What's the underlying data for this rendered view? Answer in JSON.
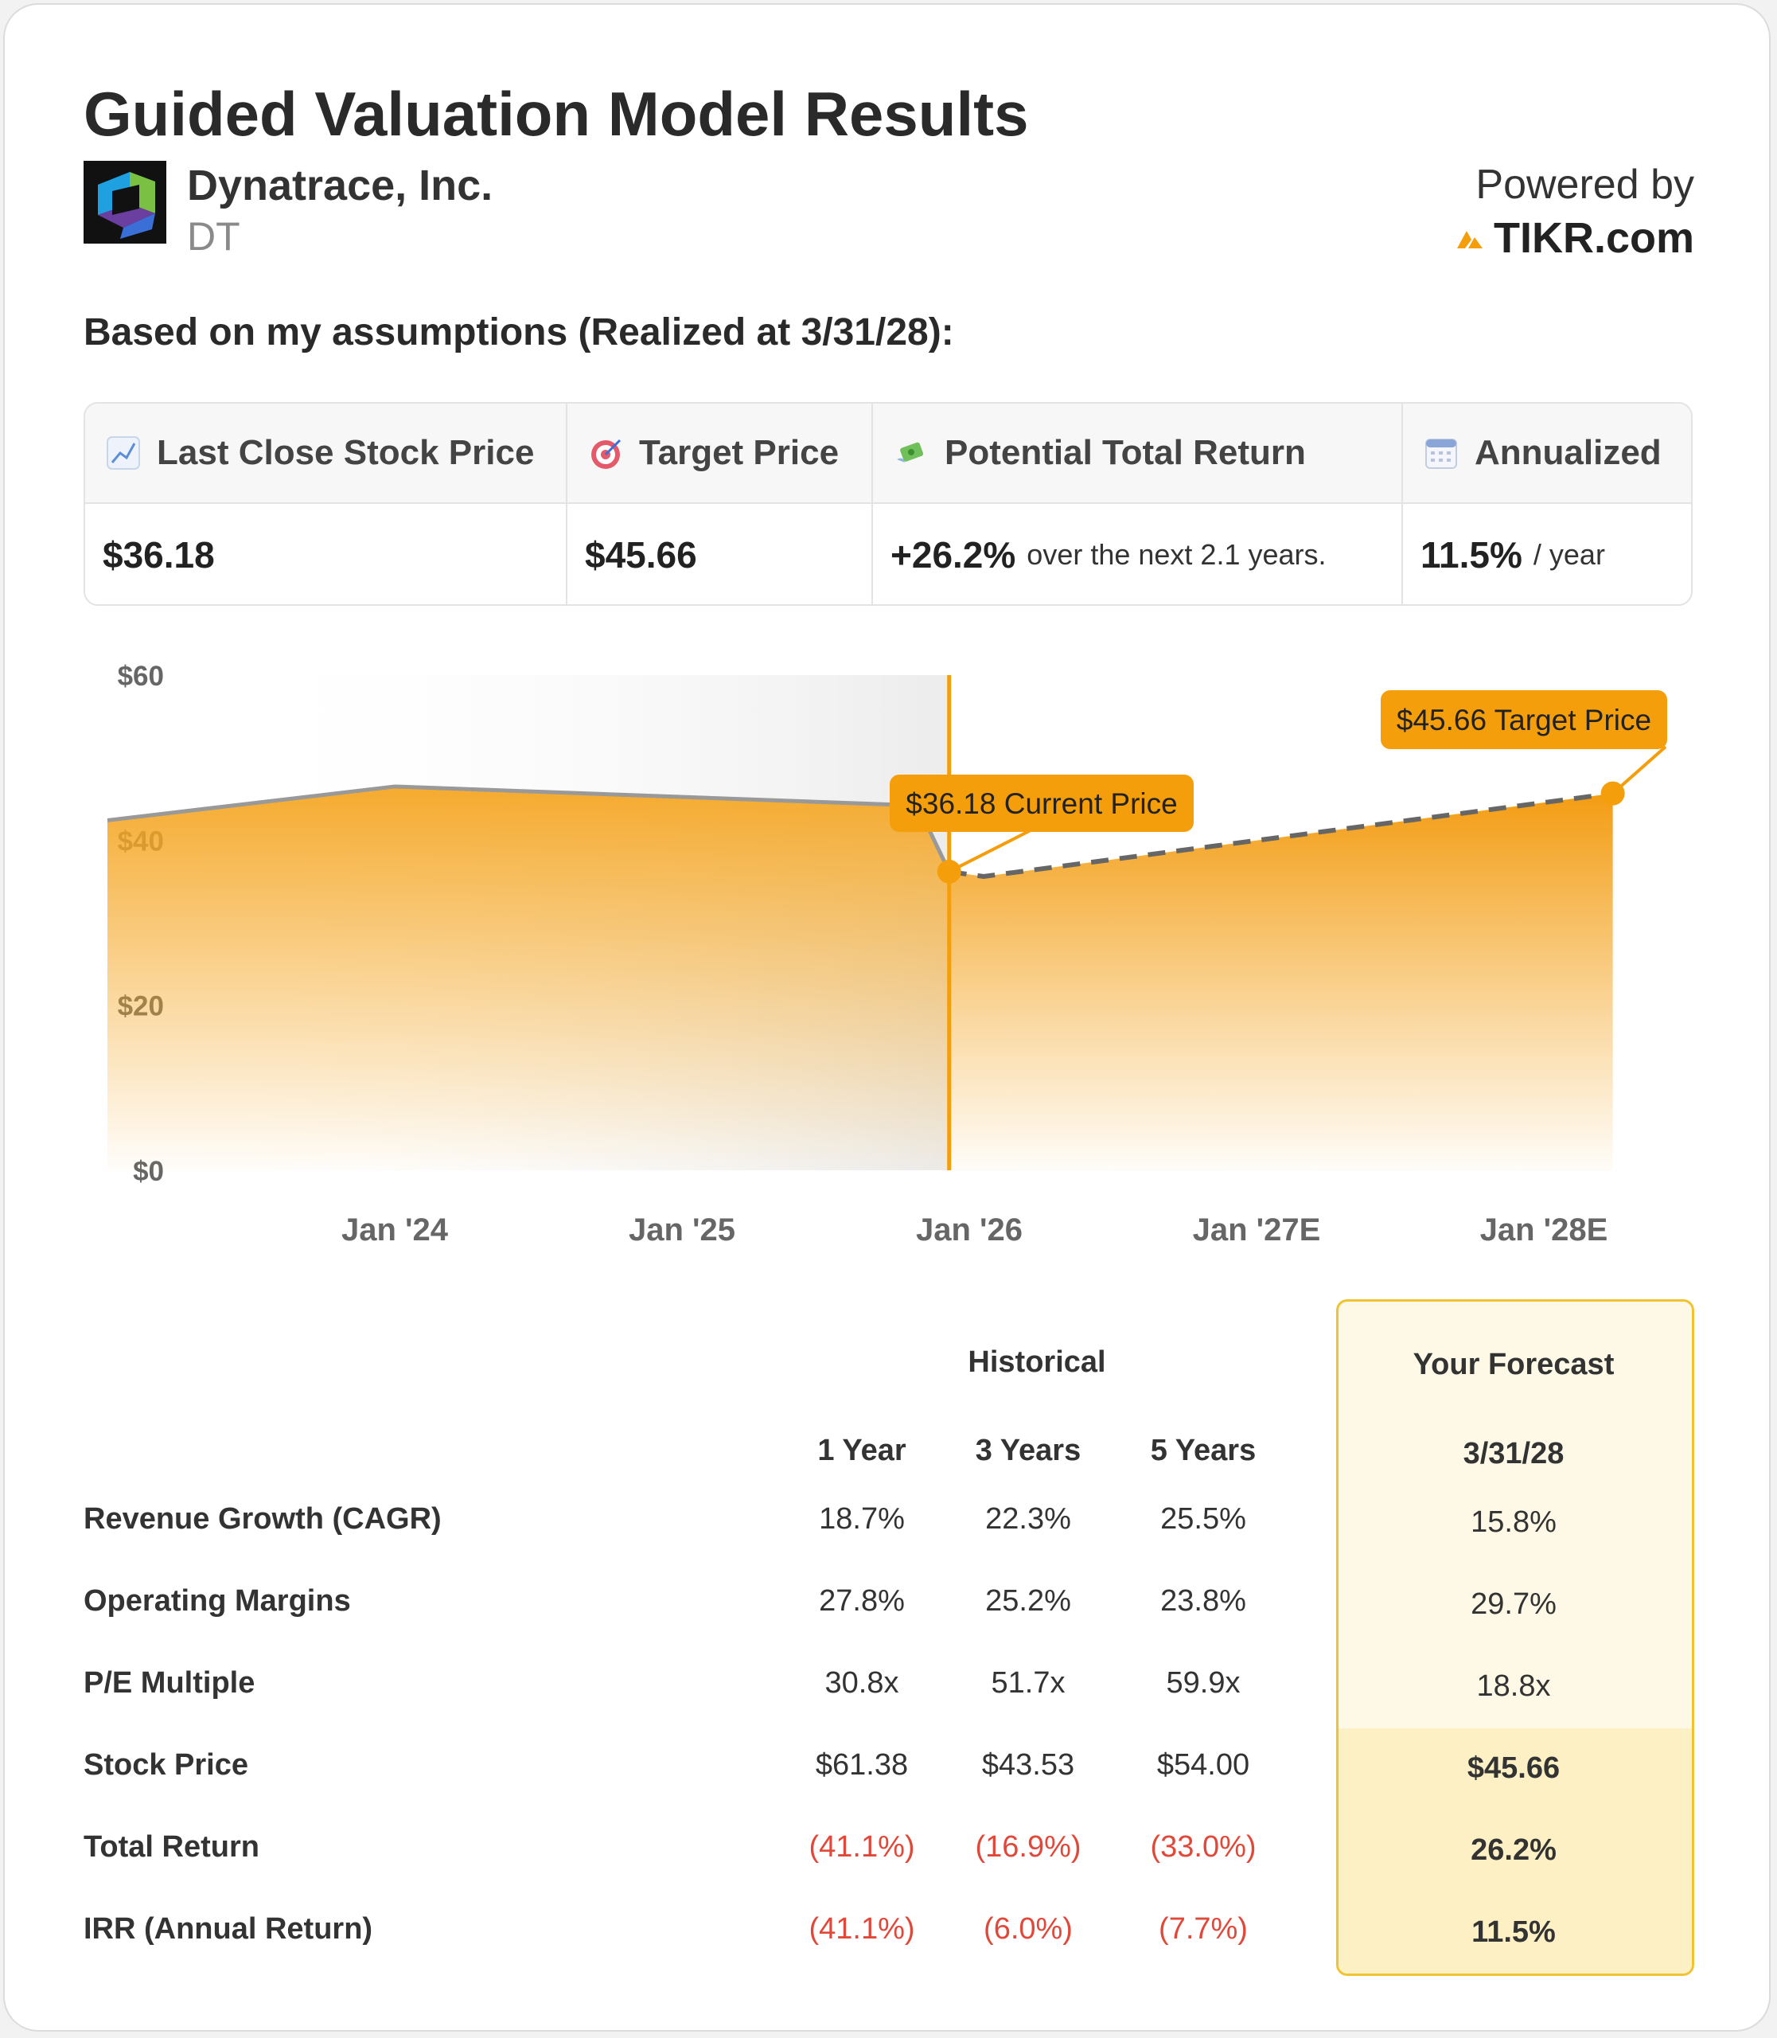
{
  "header": {
    "title": "Guided Valuation Model Results",
    "company_name": "Dynatrace, Inc.",
    "ticker": "DT",
    "powered_by": "Powered by",
    "brand": "TIKR.com"
  },
  "assumptions_text": "Based on my assumptions (Realized at 3/31/28):",
  "summary": {
    "last_close": {
      "label": "Last Close Stock Price",
      "icon": "chart-increasing-icon",
      "value": "$36.18"
    },
    "target": {
      "label": "Target Price",
      "icon": "target-icon",
      "value": "$45.66"
    },
    "total_return": {
      "label": "Potential Total Return",
      "icon": "money-wings-icon",
      "value": "+26.2%",
      "suffix": "over the next 2.1 years."
    },
    "annualized": {
      "label": "Annualized",
      "icon": "calendar-icon",
      "value": "11.5%",
      "suffix": "/ year"
    }
  },
  "chart_data": {
    "type": "area",
    "y_ticks": [
      "$60",
      "$40",
      "$20",
      "$0"
    ],
    "x_ticks": [
      "Jan '24",
      "Jan '25",
      "Jan '26",
      "Jan '27E",
      "Jan '28E"
    ],
    "ylim": [
      0,
      60
    ],
    "historical": {
      "x": [
        2023.0,
        2024.0,
        2025.82,
        2025.93
      ],
      "y": [
        42.4,
        46.5,
        44.2,
        36.18
      ]
    },
    "forecast": {
      "x": [
        2025.93,
        2026.05,
        2028.24
      ],
      "y": [
        36.18,
        35.6,
        45.66
      ]
    },
    "current_marker": {
      "x": 2025.93,
      "y": 36.18,
      "label": "$36.18 Current Price"
    },
    "target_marker": {
      "x": 2028.24,
      "y": 45.66,
      "label": "$45.66 Target Price"
    },
    "colors": {
      "fill": "#f5a623",
      "accent": "#f59e0b",
      "line": "#999999",
      "dash": "#666666"
    }
  },
  "table": {
    "historical_header": "Historical",
    "forecast_header": "Your Forecast",
    "columns": [
      "1 Year",
      "3 Years",
      "5 Years",
      "3/31/28"
    ],
    "rows": [
      {
        "label": "Revenue Growth (CAGR)",
        "values": [
          "18.7%",
          "22.3%",
          "25.5%",
          "15.8%"
        ],
        "negative": [
          false,
          false,
          false,
          false
        ]
      },
      {
        "label": "Operating Margins",
        "values": [
          "27.8%",
          "25.2%",
          "23.8%",
          "29.7%"
        ],
        "negative": [
          false,
          false,
          false,
          false
        ]
      },
      {
        "label": "P/E Multiple",
        "values": [
          "30.8x",
          "51.7x",
          "59.9x",
          "18.8x"
        ],
        "negative": [
          false,
          false,
          false,
          false
        ]
      },
      {
        "label": "Stock Price",
        "values": [
          "$61.38",
          "$43.53",
          "$54.00",
          "$45.66"
        ],
        "negative": [
          false,
          false,
          false,
          false
        ]
      },
      {
        "label": "Total Return",
        "values": [
          "(41.1%)",
          "(16.9%)",
          "(33.0%)",
          "26.2%"
        ],
        "negative": [
          true,
          true,
          true,
          false
        ]
      },
      {
        "label": "IRR (Annual Return)",
        "values": [
          "(41.1%)",
          "(6.0%)",
          "(7.7%)",
          "11.5%"
        ],
        "negative": [
          true,
          true,
          true,
          false
        ]
      }
    ]
  }
}
